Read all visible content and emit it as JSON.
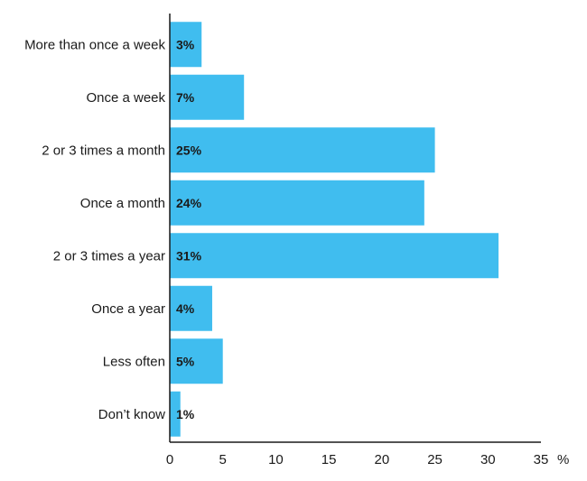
{
  "chart_data": {
    "type": "bar",
    "orientation": "horizontal",
    "categories": [
      "More than once a week",
      "Once a week",
      "2 or 3 times a month",
      "Once a month",
      "2 or 3 times a year",
      "Once a year",
      "Less often",
      "Don’t know"
    ],
    "values": [
      3,
      7,
      25,
      24,
      31,
      4,
      5,
      1
    ],
    "value_labels": [
      "3%",
      "7%",
      "25%",
      "24%",
      "31%",
      "4%",
      "5%",
      "1%"
    ],
    "xlim": [
      0,
      35
    ],
    "xticks": [
      0,
      5,
      10,
      15,
      20,
      25,
      30,
      35
    ],
    "x_unit": "%",
    "bar_color": "#40bdef",
    "grid": false
  }
}
